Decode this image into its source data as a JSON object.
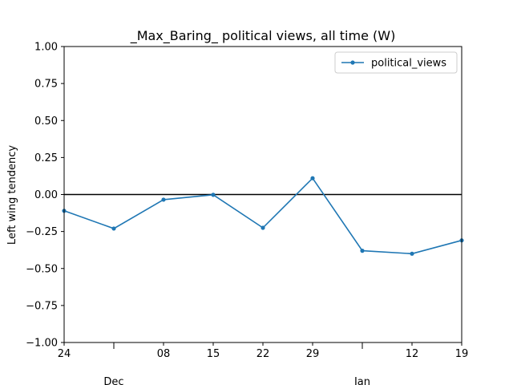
{
  "chart_data": {
    "type": "line",
    "title": "_Max_Baring_ political views, all time (W)",
    "xlabel": "",
    "ylabel": "Left wing tendency",
    "ylim": [
      -1.0,
      1.0
    ],
    "y_ticks": [
      "1.00",
      "0.75",
      "0.50",
      "0.25",
      "0.00",
      "−0.25",
      "−0.50",
      "−0.75",
      "−1.00"
    ],
    "y_tick_values": [
      1.0,
      0.75,
      0.5,
      0.25,
      0.0,
      -0.25,
      -0.5,
      -0.75,
      -1.0
    ],
    "x": [
      "2018-11-24",
      "2018-12-01",
      "2018-12-08",
      "2018-12-15",
      "2018-12-22",
      "2018-12-29",
      "2019-01-05",
      "2019-01-12",
      "2019-01-19"
    ],
    "x_minor_labels": [
      "24",
      "",
      "08",
      "15",
      "22",
      "29",
      "",
      "12",
      "19"
    ],
    "x_major_labels": [
      {
        "label": "Dec",
        "x": "2018-12-01"
      },
      {
        "label": "Jan",
        "x": "2019-01-05"
      }
    ],
    "series": [
      {
        "name": "political_views",
        "color": "#1f77b4",
        "marker": "circle",
        "values": [
          -0.11,
          -0.23,
          -0.035,
          -0.002,
          -0.225,
          0.11,
          -0.38,
          -0.4,
          -0.31
        ]
      }
    ],
    "reference_line": {
      "y": 0.0,
      "color": "#000000"
    },
    "legend_position": "top-right",
    "grid": false
  }
}
